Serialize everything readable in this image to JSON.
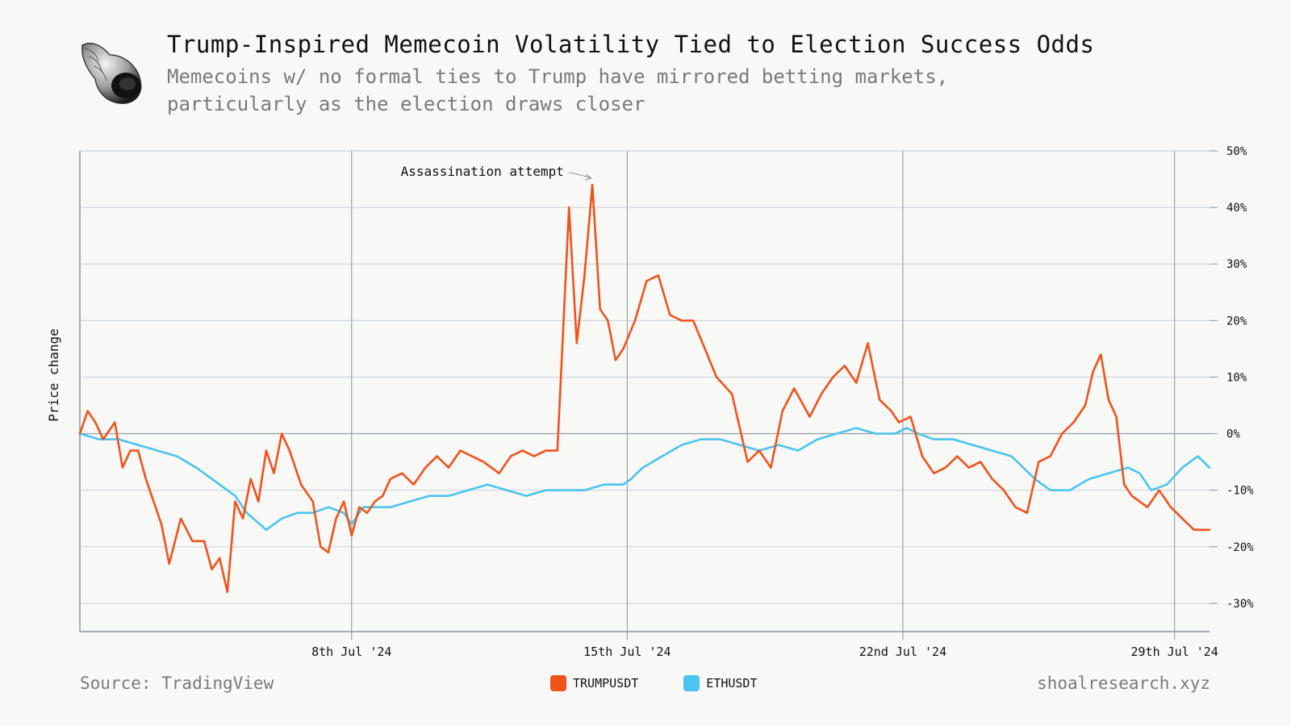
{
  "header": {
    "title": "Trump-Inspired Memecoin Volatility Tied to Election Success Odds",
    "subtitle": "Memecoins w/ no formal ties to Trump have mirrored betting markets, particularly as the election draws closer"
  },
  "footer": {
    "source": "Source: TradingView",
    "site": "shoalresearch.xyz"
  },
  "colors": {
    "trump": "#f0531c",
    "eth": "#4ac4f0",
    "grid": "#c9d1d9",
    "axis": "#8a94a0"
  },
  "chart_data": {
    "type": "line",
    "ylabel": "Price change",
    "ylim": [
      -35,
      50
    ],
    "yticks": [
      50,
      40,
      30,
      20,
      10,
      0,
      -10,
      -20,
      -30
    ],
    "ytick_labels": [
      "50%",
      "40%",
      "30%",
      "20%",
      "10%",
      "0%",
      "-10%",
      "-20%",
      "-30%"
    ],
    "xlim": [
      0,
      29.1
    ],
    "xticks": [
      7,
      14.1,
      21.2,
      28.2
    ],
    "xtick_labels": [
      "8th Jul '24",
      "15th Jul '24",
      "22nd Jul '24",
      "29th Jul '24"
    ],
    "legend": [
      "TRUMPUSDT",
      "ETHUSDT"
    ],
    "annotation": {
      "text": "Assassination attempt",
      "x": 13.3,
      "y": 45
    },
    "series": [
      {
        "name": "TRUMPUSDT",
        "x": [
          0,
          0.2,
          0.4,
          0.6,
          0.9,
          1.1,
          1.3,
          1.5,
          1.7,
          1.9,
          2.1,
          2.3,
          2.6,
          2.9,
          3.2,
          3.4,
          3.6,
          3.8,
          4.0,
          4.2,
          4.4,
          4.6,
          4.8,
          5.0,
          5.2,
          5.4,
          5.7,
          6.0,
          6.2,
          6.4,
          6.6,
          6.8,
          7.0,
          7.2,
          7.4,
          7.6,
          7.8,
          8.0,
          8.3,
          8.6,
          8.9,
          9.2,
          9.5,
          9.8,
          10.1,
          10.4,
          10.6,
          10.8,
          11.1,
          11.4,
          11.7,
          12.0,
          12.3,
          12.6,
          12.8,
          13.0,
          13.2,
          13.4,
          13.6,
          13.8,
          14.0,
          14.3,
          14.6,
          14.9,
          15.2,
          15.5,
          15.8,
          16.1,
          16.4,
          16.8,
          17.2,
          17.5,
          17.8,
          18.1,
          18.4,
          18.8,
          19.1,
          19.4,
          19.7,
          20.0,
          20.3,
          20.6,
          20.9,
          21.1,
          21.4,
          21.7,
          22.0,
          22.3,
          22.6,
          22.9,
          23.2,
          23.5,
          23.8,
          24.1,
          24.4,
          24.7,
          25.0,
          25.3,
          25.6,
          25.9,
          26.1,
          26.3,
          26.5,
          26.7,
          26.9,
          27.1,
          27.3,
          27.5,
          27.8,
          28.1,
          28.4,
          28.7,
          28.9,
          29.1
        ],
        "values": [
          0,
          4,
          2,
          -1,
          2,
          -6,
          -3,
          -3,
          -8,
          -12,
          -16,
          -23,
          -15,
          -19,
          -19,
          -24,
          -22,
          -28,
          -12,
          -15,
          -8,
          -12,
          -3,
          -7,
          0,
          -3,
          -9,
          -12,
          -20,
          -21,
          -15,
          -12,
          -18,
          -13,
          -14,
          -12,
          -11,
          -8,
          -7,
          -9,
          -6,
          -4,
          -6,
          -3,
          -4,
          -5,
          -6,
          -7,
          -4,
          -3,
          -4,
          -3,
          -3,
          40,
          16,
          28,
          44,
          22,
          20,
          13,
          15,
          20,
          27,
          28,
          21,
          20,
          20,
          15,
          10,
          7,
          -5,
          -3,
          -6,
          4,
          8,
          3,
          7,
          10,
          12,
          9,
          16,
          6,
          4,
          2,
          3,
          -4,
          -7,
          -6,
          -4,
          -6,
          -5,
          -8,
          -10,
          -13,
          -14,
          -5,
          -4,
          0,
          2,
          5,
          11,
          14,
          6,
          3,
          -9,
          -11,
          -12,
          -13,
          -10,
          -13,
          -15,
          -17,
          -17,
          -17
        ]
      },
      {
        "name": "ETHUSDT",
        "x": [
          0,
          0.5,
          1.0,
          1.5,
          2.0,
          2.5,
          3.0,
          3.4,
          3.8,
          4.0,
          4.3,
          4.8,
          5.2,
          5.6,
          6.0,
          6.4,
          6.8,
          7.0,
          7.3,
          7.6,
          8.0,
          8.5,
          9.0,
          9.5,
          10.0,
          10.5,
          11.0,
          11.5,
          12.0,
          12.5,
          13.0,
          13.5,
          14.0,
          14.2,
          14.5,
          15.0,
          15.5,
          16.0,
          16.5,
          17.0,
          17.5,
          18.0,
          18.5,
          19.0,
          19.5,
          20.0,
          20.5,
          21.0,
          21.3,
          21.6,
          22.0,
          22.5,
          23.0,
          23.5,
          24.0,
          24.3,
          24.6,
          25.0,
          25.5,
          26.0,
          26.5,
          27.0,
          27.3,
          27.6,
          28.0,
          28.4,
          28.8,
          29.1
        ],
        "values": [
          0,
          -1,
          -1,
          -2,
          -3,
          -4,
          -6,
          -8,
          -10,
          -11,
          -14,
          -17,
          -15,
          -14,
          -14,
          -13,
          -14,
          -16,
          -13,
          -13,
          -13,
          -12,
          -11,
          -11,
          -10,
          -9,
          -10,
          -11,
          -10,
          -10,
          -10,
          -9,
          -9,
          -8,
          -6,
          -4,
          -2,
          -1,
          -1,
          -2,
          -3,
          -2,
          -3,
          -1,
          0,
          1,
          0,
          0,
          1,
          0,
          -1,
          -1,
          -2,
          -3,
          -4,
          -6,
          -8,
          -10,
          -10,
          -8,
          -7,
          -6,
          -7,
          -10,
          -9,
          -6,
          -4,
          -6
        ]
      }
    ]
  }
}
